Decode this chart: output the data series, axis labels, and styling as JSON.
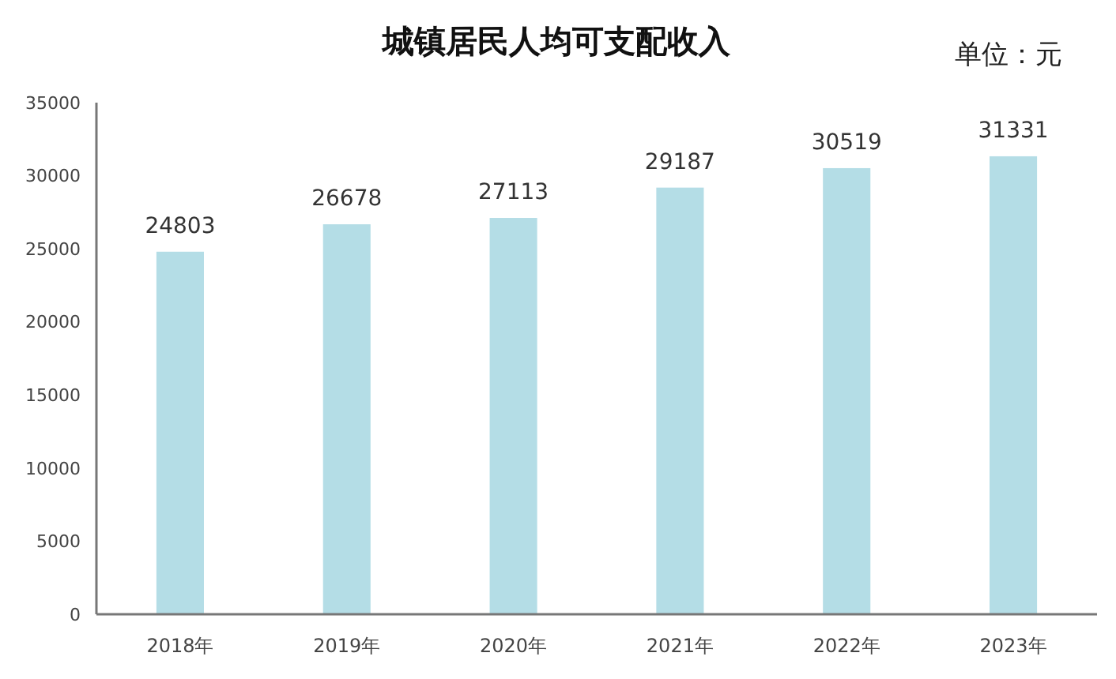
{
  "chart_data": {
    "type": "bar",
    "title": "城镇居民人均可支配收入",
    "annotations": [
      "单位：元"
    ],
    "categories": [
      "2018年",
      "2019年",
      "2020年",
      "2021年",
      "2022年",
      "2023年"
    ],
    "values": [
      24803,
      26678,
      27113,
      29187,
      30519,
      31331
    ],
    "color": "#b4dde6",
    "ylim": [
      0,
      35000
    ],
    "yticks": [
      0,
      5000,
      10000,
      15000,
      20000,
      25000,
      30000,
      35000
    ],
    "grid": false,
    "data_labels": true
  }
}
